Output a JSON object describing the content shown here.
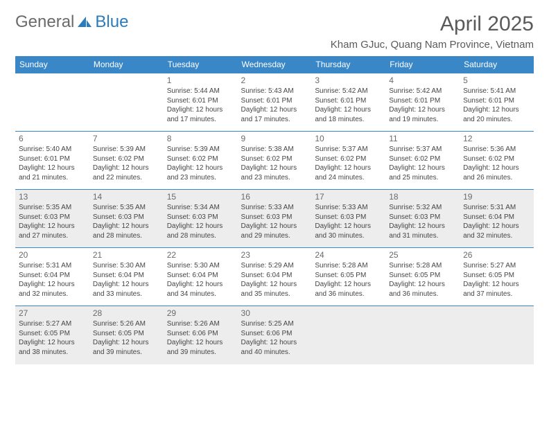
{
  "brand": {
    "part1": "General",
    "part2": "Blue"
  },
  "title": "April 2025",
  "location": "Kham GJuc, Quang Nam Province, Vietnam",
  "colors": {
    "header_bg": "#3a87c8",
    "header_text": "#ffffff",
    "border": "#3a87c8",
    "text": "#454545",
    "shaded_bg": "#ededed",
    "brand_gray": "#6a6a6a",
    "brand_blue": "#2b7bbd"
  },
  "day_headers": [
    "Sunday",
    "Monday",
    "Tuesday",
    "Wednesday",
    "Thursday",
    "Friday",
    "Saturday"
  ],
  "shaded_rows": [
    2,
    4
  ],
  "weeks": [
    [
      null,
      null,
      {
        "n": "1",
        "sr": "Sunrise: 5:44 AM",
        "ss": "Sunset: 6:01 PM",
        "d1": "Daylight: 12 hours",
        "d2": "and 17 minutes."
      },
      {
        "n": "2",
        "sr": "Sunrise: 5:43 AM",
        "ss": "Sunset: 6:01 PM",
        "d1": "Daylight: 12 hours",
        "d2": "and 17 minutes."
      },
      {
        "n": "3",
        "sr": "Sunrise: 5:42 AM",
        "ss": "Sunset: 6:01 PM",
        "d1": "Daylight: 12 hours",
        "d2": "and 18 minutes."
      },
      {
        "n": "4",
        "sr": "Sunrise: 5:42 AM",
        "ss": "Sunset: 6:01 PM",
        "d1": "Daylight: 12 hours",
        "d2": "and 19 minutes."
      },
      {
        "n": "5",
        "sr": "Sunrise: 5:41 AM",
        "ss": "Sunset: 6:01 PM",
        "d1": "Daylight: 12 hours",
        "d2": "and 20 minutes."
      }
    ],
    [
      {
        "n": "6",
        "sr": "Sunrise: 5:40 AM",
        "ss": "Sunset: 6:01 PM",
        "d1": "Daylight: 12 hours",
        "d2": "and 21 minutes."
      },
      {
        "n": "7",
        "sr": "Sunrise: 5:39 AM",
        "ss": "Sunset: 6:02 PM",
        "d1": "Daylight: 12 hours",
        "d2": "and 22 minutes."
      },
      {
        "n": "8",
        "sr": "Sunrise: 5:39 AM",
        "ss": "Sunset: 6:02 PM",
        "d1": "Daylight: 12 hours",
        "d2": "and 23 minutes."
      },
      {
        "n": "9",
        "sr": "Sunrise: 5:38 AM",
        "ss": "Sunset: 6:02 PM",
        "d1": "Daylight: 12 hours",
        "d2": "and 23 minutes."
      },
      {
        "n": "10",
        "sr": "Sunrise: 5:37 AM",
        "ss": "Sunset: 6:02 PM",
        "d1": "Daylight: 12 hours",
        "d2": "and 24 minutes."
      },
      {
        "n": "11",
        "sr": "Sunrise: 5:37 AM",
        "ss": "Sunset: 6:02 PM",
        "d1": "Daylight: 12 hours",
        "d2": "and 25 minutes."
      },
      {
        "n": "12",
        "sr": "Sunrise: 5:36 AM",
        "ss": "Sunset: 6:02 PM",
        "d1": "Daylight: 12 hours",
        "d2": "and 26 minutes."
      }
    ],
    [
      {
        "n": "13",
        "sr": "Sunrise: 5:35 AM",
        "ss": "Sunset: 6:03 PM",
        "d1": "Daylight: 12 hours",
        "d2": "and 27 minutes."
      },
      {
        "n": "14",
        "sr": "Sunrise: 5:35 AM",
        "ss": "Sunset: 6:03 PM",
        "d1": "Daylight: 12 hours",
        "d2": "and 28 minutes."
      },
      {
        "n": "15",
        "sr": "Sunrise: 5:34 AM",
        "ss": "Sunset: 6:03 PM",
        "d1": "Daylight: 12 hours",
        "d2": "and 28 minutes."
      },
      {
        "n": "16",
        "sr": "Sunrise: 5:33 AM",
        "ss": "Sunset: 6:03 PM",
        "d1": "Daylight: 12 hours",
        "d2": "and 29 minutes."
      },
      {
        "n": "17",
        "sr": "Sunrise: 5:33 AM",
        "ss": "Sunset: 6:03 PM",
        "d1": "Daylight: 12 hours",
        "d2": "and 30 minutes."
      },
      {
        "n": "18",
        "sr": "Sunrise: 5:32 AM",
        "ss": "Sunset: 6:03 PM",
        "d1": "Daylight: 12 hours",
        "d2": "and 31 minutes."
      },
      {
        "n": "19",
        "sr": "Sunrise: 5:31 AM",
        "ss": "Sunset: 6:04 PM",
        "d1": "Daylight: 12 hours",
        "d2": "and 32 minutes."
      }
    ],
    [
      {
        "n": "20",
        "sr": "Sunrise: 5:31 AM",
        "ss": "Sunset: 6:04 PM",
        "d1": "Daylight: 12 hours",
        "d2": "and 32 minutes."
      },
      {
        "n": "21",
        "sr": "Sunrise: 5:30 AM",
        "ss": "Sunset: 6:04 PM",
        "d1": "Daylight: 12 hours",
        "d2": "and 33 minutes."
      },
      {
        "n": "22",
        "sr": "Sunrise: 5:30 AM",
        "ss": "Sunset: 6:04 PM",
        "d1": "Daylight: 12 hours",
        "d2": "and 34 minutes."
      },
      {
        "n": "23",
        "sr": "Sunrise: 5:29 AM",
        "ss": "Sunset: 6:04 PM",
        "d1": "Daylight: 12 hours",
        "d2": "and 35 minutes."
      },
      {
        "n": "24",
        "sr": "Sunrise: 5:28 AM",
        "ss": "Sunset: 6:05 PM",
        "d1": "Daylight: 12 hours",
        "d2": "and 36 minutes."
      },
      {
        "n": "25",
        "sr": "Sunrise: 5:28 AM",
        "ss": "Sunset: 6:05 PM",
        "d1": "Daylight: 12 hours",
        "d2": "and 36 minutes."
      },
      {
        "n": "26",
        "sr": "Sunrise: 5:27 AM",
        "ss": "Sunset: 6:05 PM",
        "d1": "Daylight: 12 hours",
        "d2": "and 37 minutes."
      }
    ],
    [
      {
        "n": "27",
        "sr": "Sunrise: 5:27 AM",
        "ss": "Sunset: 6:05 PM",
        "d1": "Daylight: 12 hours",
        "d2": "and 38 minutes."
      },
      {
        "n": "28",
        "sr": "Sunrise: 5:26 AM",
        "ss": "Sunset: 6:05 PM",
        "d1": "Daylight: 12 hours",
        "d2": "and 39 minutes."
      },
      {
        "n": "29",
        "sr": "Sunrise: 5:26 AM",
        "ss": "Sunset: 6:06 PM",
        "d1": "Daylight: 12 hours",
        "d2": "and 39 minutes."
      },
      {
        "n": "30",
        "sr": "Sunrise: 5:25 AM",
        "ss": "Sunset: 6:06 PM",
        "d1": "Daylight: 12 hours",
        "d2": "and 40 minutes."
      },
      null,
      null,
      null
    ]
  ]
}
